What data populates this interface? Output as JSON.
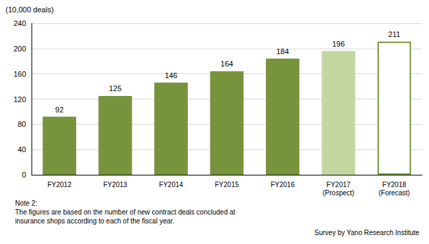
{
  "chart_data": {
    "type": "bar",
    "ylabel": "(10,000 deals)",
    "categories": [
      "FY2012",
      "FY2013",
      "FY2014",
      "FY2015",
      "FY2016",
      "FY2017\n(Prospect)",
      "FY2018\n(Forecast)"
    ],
    "values": [
      92,
      125,
      146,
      164,
      184,
      196,
      211
    ],
    "colors": [
      "#77933c",
      "#77933c",
      "#77933c",
      "#77933c",
      "#77933c",
      "#c4d6a0",
      "#ffffff"
    ],
    "ylim": [
      0,
      240
    ],
    "yticks": [
      0,
      40,
      80,
      120,
      160,
      200,
      240
    ],
    "grid": true,
    "data_labels": true,
    "annotations": [
      "Note 2:\nThe figures are based on the number of new contract deals concluded at\ninsurance shops according to each of the fiscal year.",
      "Survey by Yano Research Institute"
    ]
  }
}
